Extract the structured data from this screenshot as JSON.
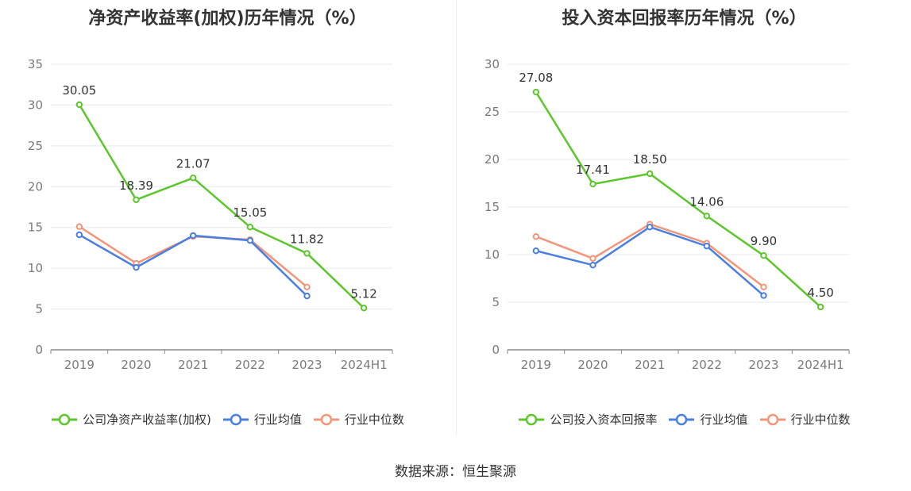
{
  "colors": {
    "company": "#5cc72b",
    "industry_avg": "#4a7fe0",
    "industry_median": "#f2957a",
    "grid": "#e6e8ef",
    "axis": "#8a8a8a",
    "tick_text": "#7a7a7a",
    "label_text": "#333333"
  },
  "chart_data": [
    {
      "type": "line",
      "title": "净资产收益率(加权)历年情况（%）",
      "categories": [
        "2019",
        "2020",
        "2021",
        "2022",
        "2023",
        "2024H1"
      ],
      "ylim": [
        0,
        35
      ],
      "yticks": [
        0,
        5,
        10,
        15,
        20,
        25,
        30,
        35
      ],
      "grid": true,
      "legend_position": "bottom",
      "series": [
        {
          "name": "公司净资产收益率(加权)",
          "values": [
            30.05,
            18.39,
            21.07,
            15.05,
            11.82,
            5.12
          ],
          "labels": [
            "30.05",
            "18.39",
            "21.07",
            "15.05",
            "11.82",
            "5.12"
          ]
        },
        {
          "name": "行业均值",
          "values": [
            14.1,
            10.1,
            14.0,
            13.4,
            6.6,
            null
          ]
        },
        {
          "name": "行业中位数",
          "values": [
            15.1,
            10.6,
            13.9,
            13.5,
            7.7,
            null
          ]
        }
      ]
    },
    {
      "type": "line",
      "title": "投入资本回报率历年情况（%）",
      "categories": [
        "2019",
        "2020",
        "2021",
        "2022",
        "2023",
        "2024H1"
      ],
      "ylim": [
        0,
        30
      ],
      "yticks": [
        0,
        5,
        10,
        15,
        20,
        25,
        30
      ],
      "grid": true,
      "legend_position": "bottom",
      "series": [
        {
          "name": "公司投入资本回报率",
          "values": [
            27.08,
            17.41,
            18.5,
            14.06,
            9.9,
            4.5
          ],
          "labels": [
            "27.08",
            "17.41",
            "18.50",
            "14.06",
            "9.90",
            "4.50"
          ]
        },
        {
          "name": "行业均值",
          "values": [
            10.4,
            8.9,
            12.9,
            10.9,
            5.7,
            null
          ]
        },
        {
          "name": "行业中位数",
          "values": [
            11.9,
            9.6,
            13.2,
            11.2,
            6.6,
            null
          ]
        }
      ]
    }
  ],
  "source": "数据来源：恒生聚源"
}
